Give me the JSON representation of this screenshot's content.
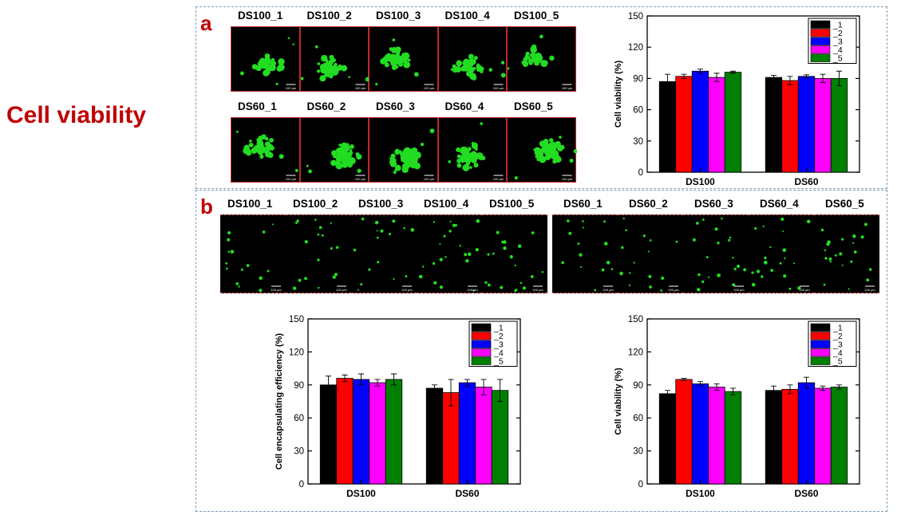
{
  "slide": {
    "title": "Cell viability"
  },
  "panel_a": {
    "letter": "a",
    "ds100_labels": [
      "DS100_1",
      "DS100_2",
      "DS100_3",
      "DS100_4",
      "DS100_5"
    ],
    "ds60_labels": [
      "DS60_1",
      "DS60_2",
      "DS60_3",
      "DS60_4",
      "DS60_5"
    ],
    "scale_bar_text": "100 μm"
  },
  "panel_b": {
    "letter": "b",
    "ds100_labels": [
      "DS100_1",
      "DS100_2",
      "DS100_3",
      "DS100_4",
      "DS100_5"
    ],
    "ds60_labels": [
      "DS60_1",
      "DS60_2",
      "DS60_3",
      "DS60_4",
      "DS60_5"
    ],
    "scale_bar_text": "100 μm"
  },
  "colors": {
    "title_red": "#c00000",
    "cells_green": "#22dd22",
    "series": [
      "#000000",
      "#ff0000",
      "#0000ff",
      "#ff00ff",
      "#008000"
    ]
  },
  "chart_data": [
    {
      "id": "a-viability",
      "type": "bar",
      "ylabel": "Cell viability (%)",
      "xlabel": "",
      "ylim": [
        0,
        150
      ],
      "yticks": [
        0,
        30,
        60,
        90,
        120,
        150
      ],
      "categories": [
        "DS100",
        "DS60"
      ],
      "legend_position": "top-right",
      "series": [
        {
          "name": "_1",
          "values": [
            87,
            91
          ],
          "errors": [
            7,
            2
          ]
        },
        {
          "name": "_2",
          "values": [
            92,
            88
          ],
          "errors": [
            2,
            4
          ]
        },
        {
          "name": "_3",
          "values": [
            97,
            92
          ],
          "errors": [
            2,
            1.5
          ]
        },
        {
          "name": "_4",
          "values": [
            91,
            90
          ],
          "errors": [
            4,
            4
          ]
        },
        {
          "name": "_5",
          "values": [
            96,
            90
          ],
          "errors": [
            1,
            7
          ]
        }
      ]
    },
    {
      "id": "b-encapsulating",
      "type": "bar",
      "ylabel": "Cell encapsulating efficiency (%)",
      "xlabel": "",
      "ylim": [
        0,
        150
      ],
      "yticks": [
        0,
        30,
        60,
        90,
        120,
        150
      ],
      "categories": [
        "DS100",
        "DS60"
      ],
      "legend_position": "top-right",
      "series": [
        {
          "name": "_1",
          "values": [
            90,
            87
          ],
          "errors": [
            8,
            3
          ]
        },
        {
          "name": "_2",
          "values": [
            96,
            83
          ],
          "errors": [
            3,
            12
          ]
        },
        {
          "name": "_3",
          "values": [
            95,
            92
          ],
          "errors": [
            5,
            3
          ]
        },
        {
          "name": "_4",
          "values": [
            92,
            88
          ],
          "errors": [
            3,
            7
          ]
        },
        {
          "name": "_5",
          "values": [
            95,
            85
          ],
          "errors": [
            5,
            10
          ]
        }
      ]
    },
    {
      "id": "b-viability",
      "type": "bar",
      "ylabel": "Cell viability (%)",
      "xlabel": "",
      "ylim": [
        0,
        150
      ],
      "yticks": [
        0,
        30,
        60,
        90,
        120,
        150
      ],
      "categories": [
        "DS100",
        "DS60"
      ],
      "legend_position": "top-right",
      "series": [
        {
          "name": "_1",
          "values": [
            82,
            85
          ],
          "errors": [
            3,
            4
          ]
        },
        {
          "name": "_2",
          "values": [
            95,
            86
          ],
          "errors": [
            1,
            4
          ]
        },
        {
          "name": "_3",
          "values": [
            91,
            92
          ],
          "errors": [
            2,
            5
          ]
        },
        {
          "name": "_4",
          "values": [
            88,
            87
          ],
          "errors": [
            3,
            2
          ]
        },
        {
          "name": "_5",
          "values": [
            84,
            88
          ],
          "errors": [
            3,
            2
          ]
        }
      ]
    }
  ]
}
